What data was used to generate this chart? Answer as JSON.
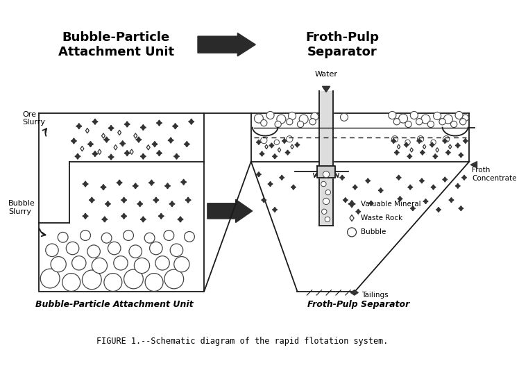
{
  "title_left": "Bubble-Particle\nAttachment Unit",
  "title_right": "Froth-Pulp\nSeparator",
  "label_ore_slurry": "Ore\nSlurry",
  "label_bubble_slurry": "Bubble\nSlurry",
  "label_water": "Water",
  "label_froth": "Froth\nConcentrate",
  "label_tailings": "Tailings",
  "label_valuable": "Valuable Mineral",
  "label_waste": "Waste Rock",
  "label_bubble": "Bubble",
  "bottom_label_left": "Bubble-Particle Attachment Unit",
  "bottom_label_right": "Froth-Pulp Separator",
  "caption": "FIGURE 1.--Schematic diagram of the rapid flotation system.",
  "bg_color": "#ffffff",
  "line_color": "#1a1a1a"
}
